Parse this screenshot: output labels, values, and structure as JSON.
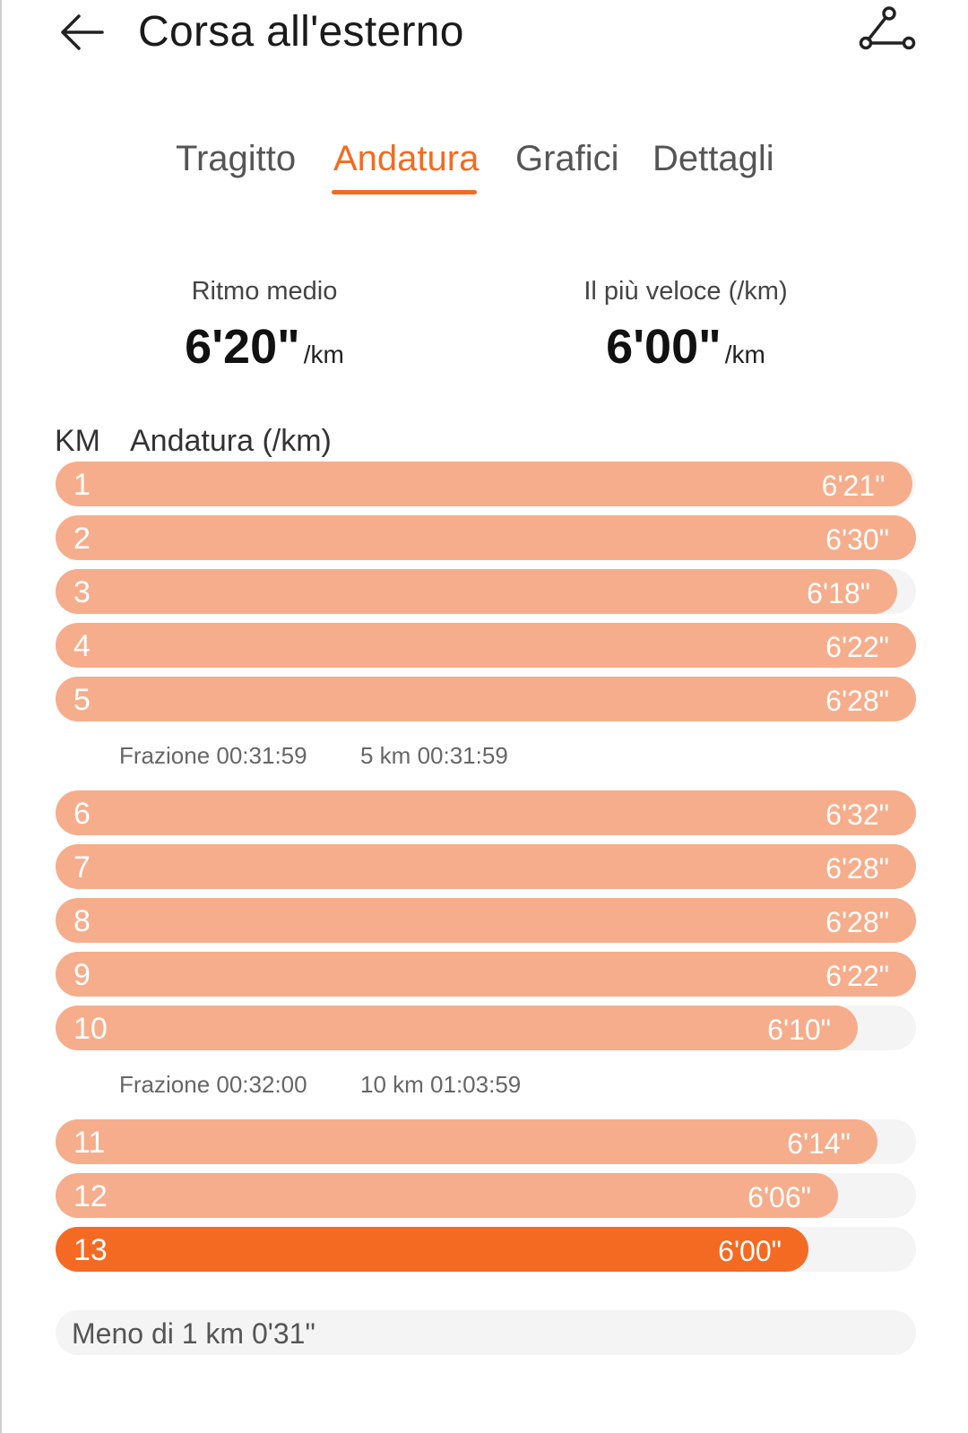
{
  "header": {
    "title": "Corsa all'esterno",
    "back_icon": "arrow-left-icon",
    "route_icon": "route-icon"
  },
  "tabs": [
    {
      "label": "Tragitto",
      "active": false
    },
    {
      "label": "Andatura",
      "active": true
    },
    {
      "label": "Grafici",
      "active": false
    },
    {
      "label": "Dettagli",
      "active": false
    }
  ],
  "summary": {
    "avg_label": "Ritmo medio",
    "avg_value": "6'20\"",
    "avg_unit": "/km",
    "fast_label": "Il più veloce (/km)",
    "fast_value": "6'00\"",
    "fast_unit": "/km"
  },
  "columns": {
    "km": "KM",
    "pace": "Andatura (/km)"
  },
  "chart_data": {
    "type": "bar",
    "categories": [
      "1",
      "2",
      "3",
      "4",
      "5",
      "6",
      "7",
      "8",
      "9",
      "10",
      "11",
      "12",
      "13"
    ],
    "pace_labels": [
      "6'21\"",
      "6'30\"",
      "6'18\"",
      "6'22\"",
      "6'28\"",
      "6'32\"",
      "6'28\"",
      "6'28\"",
      "6'22\"",
      "6'10\"",
      "6'14\"",
      "6'06\"",
      "6'00\""
    ],
    "values": [
      381,
      390,
      378,
      382,
      388,
      392,
      388,
      388,
      382,
      370,
      374,
      366,
      360
    ],
    "fastest_index": 12,
    "colors": {
      "bar": "#f6ad8c",
      "fastest": "#f56a23",
      "track": "#f4f4f4",
      "accent": "#f26b21"
    }
  },
  "splits": [
    {
      "after_index": 4,
      "label": "Frazione 00:31:59",
      "total": "5 km 00:31:59"
    },
    {
      "after_index": 9,
      "label": "Frazione 00:32:00",
      "total": "10 km 01:03:59"
    }
  ],
  "remainder": "Meno di 1 km 0'31\""
}
